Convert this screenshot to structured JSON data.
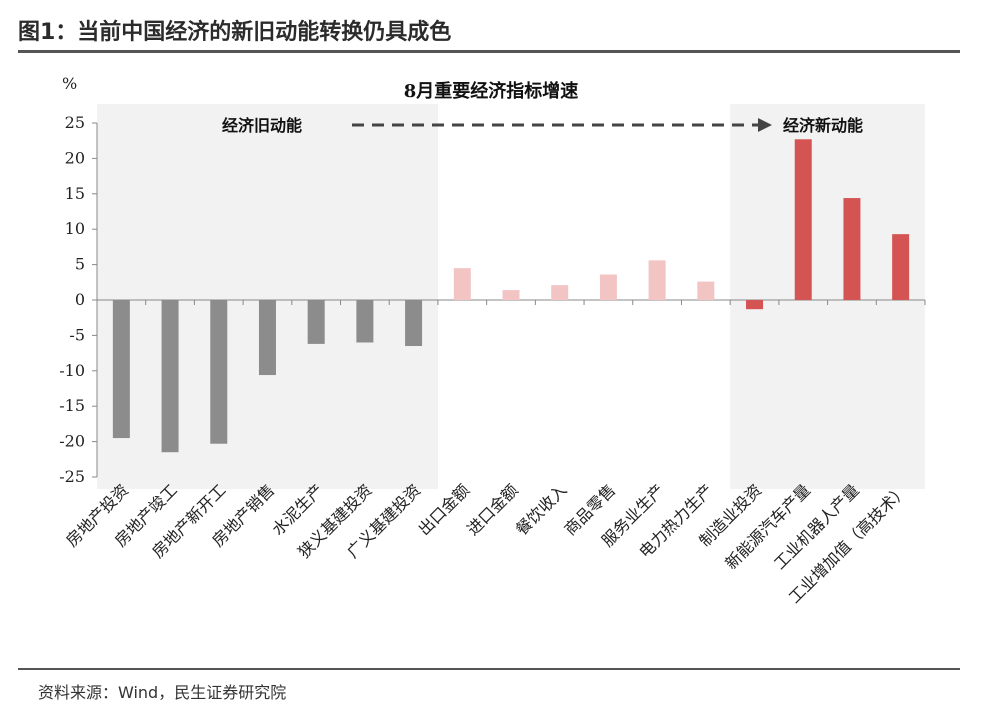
{
  "figure": {
    "title": "图1：当前中国经济的新旧动能转换仍具成色",
    "source": "资料来源：Wind，民生证券研究院"
  },
  "chart_data": {
    "type": "bar",
    "title": "8月重要经济指标增速",
    "ylabel": "%",
    "ylim": [
      -25,
      25
    ],
    "yticks": [
      25,
      20,
      15,
      10,
      5,
      0,
      -5,
      -10,
      -15,
      -20,
      -25
    ],
    "categories": [
      "房地产投资",
      "房地产竣工",
      "房地产新开工",
      "房地产销售",
      "水泥生产",
      "狭义基建投资",
      "广义基建投资",
      "出口金额",
      "进口金额",
      "餐饮收入",
      "商品零售",
      "服务业生产",
      "电力热力生产",
      "制造业投资",
      "新能源汽车产量",
      "工业机器人产量",
      "工业增加值（高技术）"
    ],
    "values": [
      -19.5,
      -21.5,
      -20.3,
      -10.6,
      -6.2,
      -6.0,
      -6.5,
      4.5,
      1.4,
      2.1,
      3.6,
      5.6,
      2.6,
      -1.3,
      22.7,
      14.4,
      9.3
    ],
    "groups": [
      "old",
      "old",
      "old",
      "old",
      "old",
      "old",
      "old",
      "mid",
      "mid",
      "mid",
      "mid",
      "mid",
      "mid",
      "new",
      "new",
      "new",
      "new"
    ],
    "colors": {
      "old": "#8c8c8c",
      "mid": "#f2c4c4",
      "new": "#d45454",
      "shade": "#f2f2f2",
      "arrow": "#444444"
    },
    "annotations": {
      "old_label": "经济旧动能",
      "new_label": "经济新动能"
    }
  }
}
